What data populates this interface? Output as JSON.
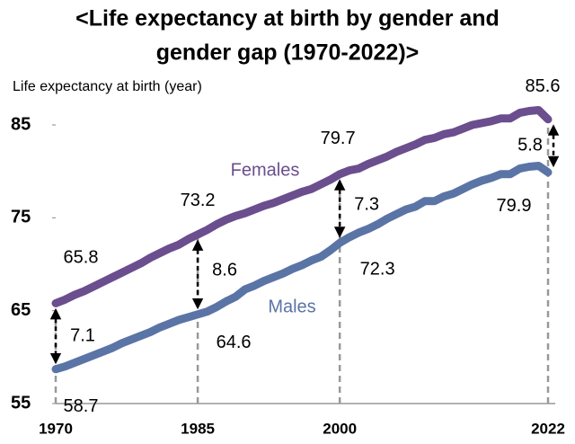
{
  "chart_data": {
    "type": "line",
    "title": "<Life expectancy at birth by gender and gender gap (1970-2022)>",
    "title_lines": [
      "<Life expectancy at birth by gender and",
      "gender gap (1970-2022)>"
    ],
    "y_label": "Life expectancy at birth (year)",
    "x": [
      1970,
      1971,
      1972,
      1973,
      1974,
      1975,
      1976,
      1977,
      1978,
      1979,
      1980,
      1981,
      1982,
      1983,
      1984,
      1985,
      1986,
      1987,
      1988,
      1989,
      1990,
      1991,
      1992,
      1993,
      1994,
      1995,
      1996,
      1997,
      1998,
      1999,
      2000,
      2001,
      2002,
      2003,
      2004,
      2005,
      2006,
      2007,
      2008,
      2009,
      2010,
      2011,
      2012,
      2013,
      2014,
      2015,
      2016,
      2017,
      2018,
      2019,
      2020,
      2021,
      2022
    ],
    "series": [
      {
        "name": "Females",
        "color": "#6b4e8e",
        "values": [
          65.8,
          66.2,
          66.7,
          67.1,
          67.6,
          68.1,
          68.6,
          69.1,
          69.6,
          70.1,
          70.7,
          71.2,
          71.7,
          72.1,
          72.7,
          73.2,
          73.7,
          74.3,
          74.8,
          75.2,
          75.5,
          75.9,
          76.3,
          76.6,
          77.0,
          77.4,
          77.8,
          78.1,
          78.6,
          79.1,
          79.7,
          80.1,
          80.3,
          80.8,
          81.2,
          81.6,
          82.1,
          82.5,
          82.9,
          83.4,
          83.6,
          84.0,
          84.2,
          84.6,
          85.0,
          85.2,
          85.4,
          85.7,
          85.7,
          86.3,
          86.5,
          86.6,
          85.6
        ]
      },
      {
        "name": "Males",
        "color": "#5a74a6",
        "values": [
          58.7,
          59.0,
          59.4,
          59.8,
          60.2,
          60.6,
          61.0,
          61.5,
          61.9,
          62.3,
          62.7,
          63.2,
          63.6,
          64.0,
          64.3,
          64.6,
          64.9,
          65.4,
          66.0,
          66.5,
          67.3,
          67.7,
          68.2,
          68.6,
          69.0,
          69.5,
          69.9,
          70.4,
          70.8,
          71.5,
          72.3,
          72.9,
          73.4,
          73.8,
          74.3,
          74.9,
          75.4,
          75.9,
          76.2,
          76.8,
          76.8,
          77.3,
          77.6,
          78.1,
          78.6,
          79.0,
          79.3,
          79.7,
          79.7,
          80.3,
          80.5,
          80.6,
          79.9
        ]
      }
    ],
    "gap_annotations": [
      {
        "x": 1970,
        "value": 7.1
      },
      {
        "x": 1985,
        "value": 8.6
      },
      {
        "x": 2000,
        "value": 7.3
      },
      {
        "x": 2022,
        "value": 5.8
      }
    ],
    "xlim": [
      1970,
      2022
    ],
    "xticks": [
      1970,
      1985,
      2000,
      2022
    ],
    "ylim": [
      55,
      88
    ],
    "yticks": [
      55,
      65,
      75,
      85
    ]
  }
}
